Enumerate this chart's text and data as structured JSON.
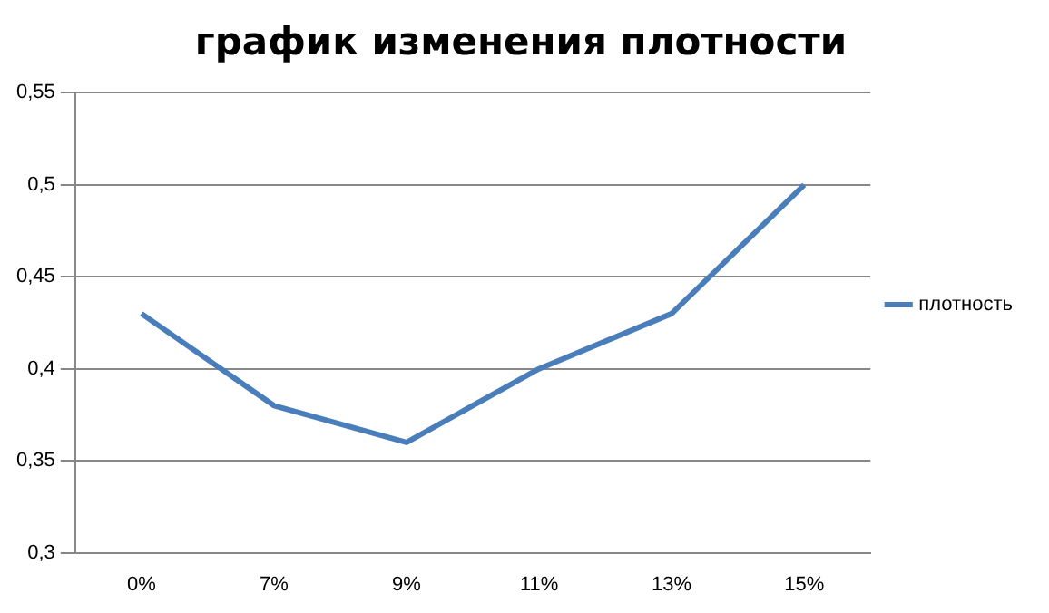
{
  "chart_data": {
    "type": "line",
    "title": "график изменения плотности",
    "categories": [
      "0%",
      "7%",
      "9%",
      "11%",
      "13%",
      "15%"
    ],
    "series": [
      {
        "name": "плотность",
        "color": "#4a7ebb",
        "values": [
          0.43,
          0.38,
          0.36,
          0.4,
          0.43,
          0.5
        ]
      }
    ],
    "ylim": [
      0.3,
      0.55
    ],
    "yticks": [
      {
        "value": 0.3,
        "label": "0,3"
      },
      {
        "value": 0.35,
        "label": "0,35"
      },
      {
        "value": 0.4,
        "label": "0,4"
      },
      {
        "value": 0.45,
        "label": "0,45"
      },
      {
        "value": 0.5,
        "label": "0,5"
      },
      {
        "value": 0.55,
        "label": "0,55"
      }
    ],
    "grid": "y",
    "legend": "right",
    "marker": "none",
    "line_style": "solid"
  }
}
